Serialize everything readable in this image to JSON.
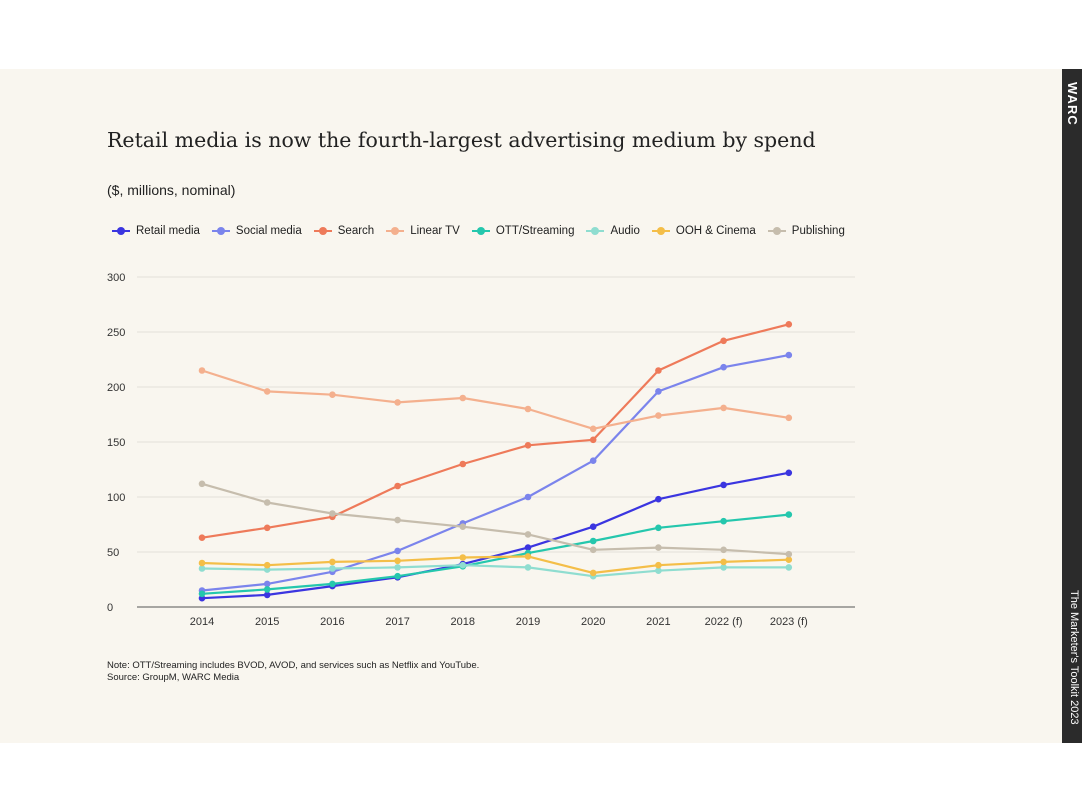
{
  "brand": "WARC",
  "side_label": "The Marketer's Toolkit 2023",
  "chart_data": {
    "type": "line",
    "title": "Retail media is now the fourth-largest advertising medium by spend",
    "subtitle": "($, millions, nominal)",
    "xlabel": "",
    "ylabel": "",
    "ylim": [
      0,
      300
    ],
    "yticks": [
      0,
      50,
      100,
      150,
      200,
      250,
      300
    ],
    "grid": true,
    "legend_position": "top",
    "categories": [
      "2014",
      "2015",
      "2016",
      "2017",
      "2018",
      "2019",
      "2020",
      "2021",
      "2022 (f)",
      "2023 (f)"
    ],
    "series": [
      {
        "name": "Retail media",
        "color": "#3b35e0",
        "values": [
          8,
          11,
          19,
          27,
          39,
          54,
          73,
          98,
          111,
          122
        ]
      },
      {
        "name": "Social media",
        "color": "#7b84ec",
        "values": [
          15,
          21,
          32,
          51,
          76,
          100,
          133,
          196,
          218,
          229
        ]
      },
      {
        "name": "Search",
        "color": "#ee7a5a",
        "values": [
          63,
          72,
          82,
          110,
          130,
          147,
          152,
          215,
          242,
          257
        ]
      },
      {
        "name": "Linear TV",
        "color": "#f4b08e",
        "values": [
          215,
          196,
          193,
          186,
          190,
          180,
          162,
          174,
          181,
          172
        ]
      },
      {
        "name": "OTT/Streaming",
        "color": "#25c7ad",
        "values": [
          12,
          16,
          21,
          28,
          37,
          49,
          60,
          72,
          78,
          84
        ]
      },
      {
        "name": "Audio",
        "color": "#8fddd0",
        "values": [
          35,
          34,
          35,
          36,
          38,
          36,
          28,
          33,
          36,
          36
        ]
      },
      {
        "name": "OOH & Cinema",
        "color": "#f4be48",
        "values": [
          40,
          38,
          41,
          42,
          45,
          46,
          31,
          38,
          41,
          43
        ]
      },
      {
        "name": "Publishing",
        "color": "#c6bdad",
        "values": [
          112,
          95,
          85,
          79,
          73,
          66,
          52,
          54,
          52,
          48
        ]
      }
    ]
  },
  "note": "Note: OTT/Streaming includes BVOD, AVOD, and services such as Netflix and YouTube.",
  "source": "Source: GroupM, WARC Media"
}
